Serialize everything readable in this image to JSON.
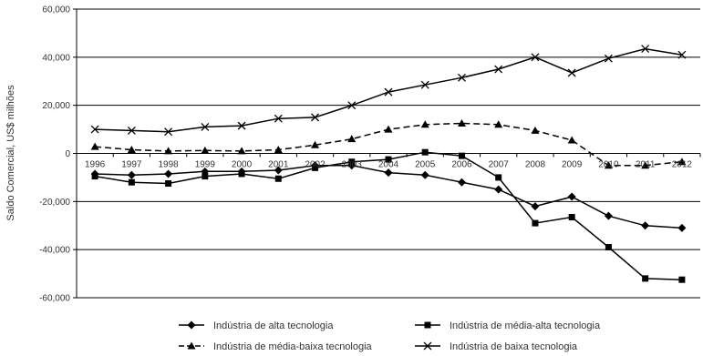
{
  "chart_data": {
    "type": "line",
    "title": "",
    "xlabel": "",
    "ylabel": "Saldo Comercial, US$ milhões",
    "ylim": [
      -60000,
      60000
    ],
    "yticks": [
      60000,
      40000,
      20000,
      0,
      -20000,
      -40000,
      -60000
    ],
    "ytick_labels": [
      "60,000",
      "40,000",
      "20,000",
      "0",
      "-20,000",
      "-40,000",
      "-60,000"
    ],
    "x": [
      "1996",
      "1997",
      "1998",
      "1999",
      "2000",
      "2001",
      "2002",
      "2003",
      "2004",
      "2005",
      "2006",
      "2007",
      "2008",
      "2009",
      "2010",
      "2011",
      "2012"
    ],
    "grid": "horizontal",
    "legend_position": "bottom",
    "series": [
      {
        "name": "Indústria de alta tecnologia",
        "marker": "diamond",
        "dash": "solid",
        "values": [
          -8500,
          -9000,
          -8500,
          -7500,
          -7500,
          -7000,
          -5000,
          -5000,
          -8000,
          -9000,
          -12000,
          -15000,
          -22000,
          -18000,
          -26000,
          -30000,
          -31000
        ]
      },
      {
        "name": "Indústria de média-alta tecnologia",
        "marker": "square",
        "dash": "solid",
        "values": [
          -9500,
          -12000,
          -12500,
          -9500,
          -8500,
          -10500,
          -6000,
          -3500,
          -2500,
          500,
          -1000,
          -10000,
          -29000,
          -26500,
          -39000,
          -52000,
          -52500
        ]
      },
      {
        "name": "Indústria de média-baixa tecnologia",
        "marker": "triangle",
        "dash": "dashed",
        "values": [
          2800,
          1500,
          1000,
          1200,
          1000,
          1500,
          3500,
          6000,
          10000,
          12000,
          12500,
          12000,
          9500,
          5500,
          -5000,
          -5000,
          -3500
        ]
      },
      {
        "name": "Indústria de baixa tecnologia",
        "marker": "x",
        "dash": "solid",
        "values": [
          10000,
          9500,
          9000,
          11000,
          11500,
          14500,
          15000,
          20000,
          25500,
          28500,
          31500,
          35000,
          40000,
          33500,
          39500,
          43500,
          41000
        ]
      }
    ]
  }
}
